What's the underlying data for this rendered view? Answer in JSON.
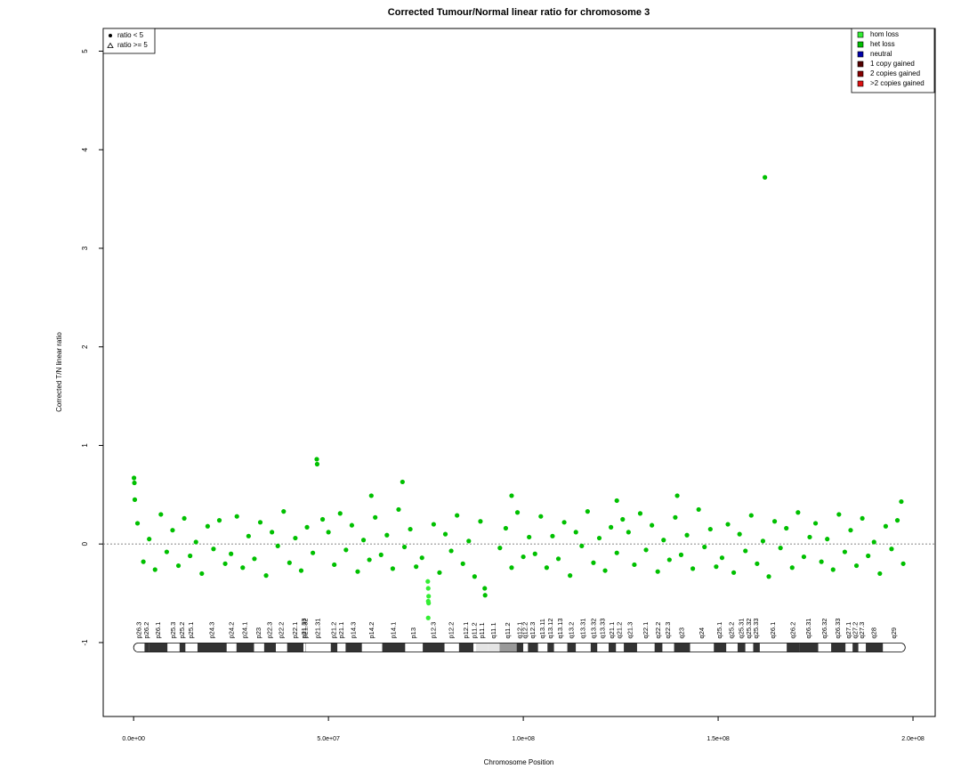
{
  "chart_data": {
    "type": "scatter",
    "title": "Corrected Tumour/Normal linear ratio for chromosome  3",
    "x_label": "Chromosome Position",
    "y_label": "Corrected T/N linear ratio",
    "xlim": [
      -7800000.0,
      205700000.0
    ],
    "ylim": [
      -1.75,
      5.23
    ],
    "xticks": [
      {
        "value": 0,
        "label": "0.0e+00"
      },
      {
        "value": 50000000.0,
        "label": "5.0e+07"
      },
      {
        "value": 100000000.0,
        "label": "1.0e+08"
      },
      {
        "value": 150000000.0,
        "label": "1.5e+08"
      },
      {
        "value": 200000000.0,
        "label": "2.0e+08"
      }
    ],
    "yticks": [
      -1,
      0,
      1,
      2,
      3,
      4,
      5
    ],
    "hline": 0,
    "legend": "top-right",
    "shape_legend": [
      {
        "label": "ratio < 5",
        "shape": "circle"
      },
      {
        "label": "ratio >= 5",
        "shape": "triangle"
      }
    ],
    "series": [
      {
        "name": "hom loss",
        "color": "#33ee33",
        "x": [
          75500000.0,
          75600000.0,
          75700000.0,
          75600000.0,
          75700000.0,
          75600000.0
        ],
        "values": [
          -0.38,
          -0.45,
          -0.53,
          -0.58,
          -0.6,
          -0.75
        ]
      },
      {
        "name": "het loss",
        "color": "#00c000",
        "x": [
          1000000.0,
          2500000.0,
          4000000.0,
          5500000.0,
          7000000.0,
          8500000.0,
          10000000.0,
          11500000.0,
          13000000.0,
          14500000.0,
          16000000.0,
          17500000.0,
          19000000.0,
          20500000.0,
          22000000.0,
          23500000.0,
          25000000.0,
          26500000.0,
          28000000.0,
          29500000.0,
          31000000.0,
          32500000.0,
          34000000.0,
          35500000.0,
          37000000.0,
          38500000.0,
          40000000.0,
          41500000.0,
          43000000.0,
          44500000.0,
          46000000.0,
          48500000.0,
          50000000.0,
          51500000.0,
          53000000.0,
          54500000.0,
          56000000.0,
          57500000.0,
          59000000.0,
          60500000.0,
          62000000.0,
          63500000.0,
          65000000.0,
          66500000.0,
          68000000.0,
          69500000.0,
          71000000.0,
          72500000.0,
          74000000.0,
          77000000.0,
          78500000.0,
          80000000.0,
          81500000.0,
          83000000.0,
          84500000.0,
          86000000.0,
          87500000.0,
          89000000.0,
          94000000.0,
          95500000.0,
          97000000.0,
          98500000.0,
          100000000.0,
          101500000.0,
          103000000.0,
          104500000.0,
          106000000.0,
          107500000.0,
          109000000.0,
          110500000.0,
          112000000.0,
          113500000.0,
          115000000.0,
          116500000.0,
          118000000.0,
          119500000.0,
          121000000.0,
          122500000.0,
          124000000.0,
          125500000.0,
          127000000.0,
          128500000.0,
          130000000.0,
          131500000.0,
          133000000.0,
          134500000.0,
          136000000.0,
          137500000.0,
          139000000.0,
          140500000.0,
          142000000.0,
          143500000.0,
          145000000.0,
          146500000.0,
          148000000.0,
          149500000.0,
          151000000.0,
          152500000.0,
          154000000.0,
          155500000.0,
          157000000.0,
          158500000.0,
          160000000.0,
          161500000.0,
          163000000.0,
          164500000.0,
          166000000.0,
          167500000.0,
          169000000.0,
          170500000.0,
          172000000.0,
          173500000.0,
          175000000.0,
          176500000.0,
          178000000.0,
          179500000.0,
          181000000.0,
          182500000.0,
          184000000.0,
          185500000.0,
          187000000.0,
          188500000.0,
          190000000.0,
          191500000.0,
          193000000.0,
          194500000.0,
          196000000.0,
          197500000.0,
          100000.0,
          200000.0,
          300000.0,
          47000000.0,
          47100000.0,
          69000000.0,
          162000000.0,
          61000000.0,
          97000000.0,
          139500000.0,
          124000000.0,
          197000000.0,
          90100000.0,
          90200000.0
        ],
        "values": [
          0.21,
          -0.18,
          0.05,
          -0.26,
          0.3,
          -0.08,
          0.14,
          -0.22,
          0.26,
          -0.12,
          0.02,
          -0.3,
          0.18,
          -0.05,
          0.24,
          -0.2,
          -0.1,
          0.28,
          -0.24,
          0.08,
          -0.15,
          0.22,
          -0.32,
          0.12,
          -0.02,
          0.33,
          -0.19,
          0.06,
          -0.27,
          0.17,
          -0.09,
          0.25,
          0.12,
          -0.21,
          0.31,
          -0.06,
          0.19,
          -0.28,
          0.04,
          -0.16,
          0.27,
          -0.11,
          0.09,
          -0.25,
          0.35,
          -0.03,
          0.15,
          -0.23,
          -0.14,
          0.2,
          -0.29,
          0.1,
          -0.07,
          0.29,
          -0.2,
          0.03,
          -0.33,
          0.23,
          -0.04,
          0.16,
          -0.24,
          0.32,
          -0.13,
          0.07,
          -0.1,
          0.28,
          -0.24,
          0.08,
          -0.15,
          0.22,
          -0.32,
          0.12,
          -0.02,
          0.33,
          -0.19,
          0.06,
          -0.27,
          0.17,
          -0.09,
          0.25,
          0.12,
          -0.21,
          0.31,
          -0.06,
          0.19,
          -0.28,
          0.04,
          -0.16,
          0.27,
          -0.11,
          0.09,
          -0.25,
          0.35,
          -0.03,
          0.15,
          -0.23,
          -0.14,
          0.2,
          -0.29,
          0.1,
          -0.07,
          0.29,
          -0.2,
          0.03,
          -0.33,
          0.23,
          -0.04,
          0.16,
          -0.24,
          0.32,
          -0.13,
          0.07,
          0.21,
          -0.18,
          0.05,
          -0.26,
          0.3,
          -0.08,
          0.14,
          -0.22,
          0.26,
          -0.12,
          0.02,
          -0.3,
          0.18,
          -0.05,
          0.24,
          -0.2,
          0.67,
          0.62,
          0.45,
          0.86,
          0.81,
          0.63,
          3.72,
          0.49,
          0.49,
          0.49,
          0.44,
          0.43,
          -0.45,
          -0.52
        ]
      },
      {
        "name": "neutral",
        "color": "#0000aa",
        "x": [],
        "values": []
      },
      {
        "name": "1 copy gained",
        "color": "#550000",
        "x": [],
        "values": []
      },
      {
        "name": "2 copies gained",
        "color": "#880000",
        "x": [],
        "values": []
      },
      {
        "name": ">2 copies gained",
        "color": "#dd1111",
        "x": [],
        "values": []
      }
    ],
    "ideogram": {
      "value": -1.05,
      "bands": [
        {
          "name": "p26.3",
          "start": 0,
          "end": 2800000.0,
          "color": "#ffffff"
        },
        {
          "name": "p26.2",
          "start": 2800000.0,
          "end": 4000000.0,
          "color": "#333333"
        },
        {
          "name": "p26.1",
          "start": 4000000.0,
          "end": 8700000.0,
          "color": "#333333"
        },
        {
          "name": "p25.3",
          "start": 8700000.0,
          "end": 11800000.0,
          "color": "#ffffff"
        },
        {
          "name": "p25.2",
          "start": 11800000.0,
          "end": 13300000.0,
          "color": "#333333"
        },
        {
          "name": "p25.1",
          "start": 13300000.0,
          "end": 16400000.0,
          "color": "#ffffff"
        },
        {
          "name": "p24.3",
          "start": 16400000.0,
          "end": 23900000.0,
          "color": "#333333"
        },
        {
          "name": "p24.2",
          "start": 23900000.0,
          "end": 26400000.0,
          "color": "#ffffff"
        },
        {
          "name": "p24.1",
          "start": 26400000.0,
          "end": 30900000.0,
          "color": "#333333"
        },
        {
          "name": "p23",
          "start": 30900000.0,
          "end": 33500000.0,
          "color": "#ffffff"
        },
        {
          "name": "p22.3",
          "start": 33500000.0,
          "end": 36500000.0,
          "color": "#333333"
        },
        {
          "name": "p22.2",
          "start": 36500000.0,
          "end": 39400000.0,
          "color": "#ffffff"
        },
        {
          "name": "p22.1",
          "start": 39400000.0,
          "end": 43600000.0,
          "color": "#333333"
        },
        {
          "name": "p21.33",
          "start": 43600000.0,
          "end": 44100000.0,
          "color": "#ffffff"
        },
        {
          "name": "p21.32",
          "start": 44100000.0,
          "end": 44200000.0,
          "color": "#333333"
        },
        {
          "name": "p21.31",
          "start": 44200000.0,
          "end": 50600000.0,
          "color": "#ffffff"
        },
        {
          "name": "p21.2",
          "start": 50600000.0,
          "end": 52300000.0,
          "color": "#333333"
        },
        {
          "name": "p21.1",
          "start": 52300000.0,
          "end": 54400000.0,
          "color": "#ffffff"
        },
        {
          "name": "p14.3",
          "start": 54400000.0,
          "end": 58600000.0,
          "color": "#333333"
        },
        {
          "name": "p14.2",
          "start": 58600000.0,
          "end": 63800000.0,
          "color": "#ffffff"
        },
        {
          "name": "p14.1",
          "start": 63800000.0,
          "end": 69700000.0,
          "color": "#333333"
        },
        {
          "name": "p13",
          "start": 69700000.0,
          "end": 74200000.0,
          "color": "#ffffff"
        },
        {
          "name": "p12.3",
          "start": 74200000.0,
          "end": 79800000.0,
          "color": "#333333"
        },
        {
          "name": "p12.2",
          "start": 79800000.0,
          "end": 83500000.0,
          "color": "#ffffff"
        },
        {
          "name": "p12.1",
          "start": 83500000.0,
          "end": 87200000.0,
          "color": "#333333"
        },
        {
          "name": "p11.2",
          "start": 87200000.0,
          "end": 87900000.0,
          "color": "#ffffff"
        },
        {
          "name": "p11.1",
          "start": 87900000.0,
          "end": 91000000.0,
          "color": "#e4e4e4"
        },
        {
          "name": "q11.1",
          "start": 91000000.0,
          "end": 93900000.0,
          "color": "#e4e4e4"
        },
        {
          "name": "q11.2",
          "start": 93900000.0,
          "end": 98300000.0,
          "color": "#999999"
        },
        {
          "name": "q12.1",
          "start": 98300000.0,
          "end": 100000000.0,
          "color": "#333333"
        },
        {
          "name": "q12.2",
          "start": 100000000.0,
          "end": 101200000.0,
          "color": "#ffffff"
        },
        {
          "name": "q12.3",
          "start": 101200000.0,
          "end": 103800000.0,
          "color": "#333333"
        },
        {
          "name": "q13.11",
          "start": 103800000.0,
          "end": 106200000.0,
          "color": "#ffffff"
        },
        {
          "name": "q13.12",
          "start": 106200000.0,
          "end": 107900000.0,
          "color": "#333333"
        },
        {
          "name": "q13.13",
          "start": 107900000.0,
          "end": 111300000.0,
          "color": "#ffffff"
        },
        {
          "name": "q13.2",
          "start": 111300000.0,
          "end": 113500000.0,
          "color": "#333333"
        },
        {
          "name": "q13.31",
          "start": 113500000.0,
          "end": 117300000.0,
          "color": "#ffffff"
        },
        {
          "name": "q13.32",
          "start": 117300000.0,
          "end": 119000000.0,
          "color": "#333333"
        },
        {
          "name": "q13.33",
          "start": 119000000.0,
          "end": 121900000.0,
          "color": "#ffffff"
        },
        {
          "name": "q21.1",
          "start": 121900000.0,
          "end": 123800000.0,
          "color": "#333333"
        },
        {
          "name": "q21.2",
          "start": 123800000.0,
          "end": 125800000.0,
          "color": "#ffffff"
        },
        {
          "name": "q21.3",
          "start": 125800000.0,
          "end": 129200000.0,
          "color": "#333333"
        },
        {
          "name": "q22.1",
          "start": 129200000.0,
          "end": 133700000.0,
          "color": "#ffffff"
        },
        {
          "name": "q22.2",
          "start": 133700000.0,
          "end": 135700000.0,
          "color": "#333333"
        },
        {
          "name": "q22.3",
          "start": 135700000.0,
          "end": 138700000.0,
          "color": "#ffffff"
        },
        {
          "name": "q23",
          "start": 138700000.0,
          "end": 142800000.0,
          "color": "#333333"
        },
        {
          "name": "q24",
          "start": 142800000.0,
          "end": 148900000.0,
          "color": "#ffffff"
        },
        {
          "name": "q25.1",
          "start": 148900000.0,
          "end": 152100000.0,
          "color": "#333333"
        },
        {
          "name": "q25.2",
          "start": 152100000.0,
          "end": 155000000.0,
          "color": "#ffffff"
        },
        {
          "name": "q25.31",
          "start": 155000000.0,
          "end": 157000000.0,
          "color": "#333333"
        },
        {
          "name": "q25.32",
          "start": 157000000.0,
          "end": 159000000.0,
          "color": "#ffffff"
        },
        {
          "name": "q25.33",
          "start": 159000000.0,
          "end": 160700000.0,
          "color": "#333333"
        },
        {
          "name": "q26.1",
          "start": 160700000.0,
          "end": 167600000.0,
          "color": "#ffffff"
        },
        {
          "name": "q26.2",
          "start": 167600000.0,
          "end": 170900000.0,
          "color": "#333333"
        },
        {
          "name": "q26.31",
          "start": 170900000.0,
          "end": 175700000.0,
          "color": "#333333"
        },
        {
          "name": "q26.32",
          "start": 175700000.0,
          "end": 179000000.0,
          "color": "#ffffff"
        },
        {
          "name": "q26.33",
          "start": 179000000.0,
          "end": 182700000.0,
          "color": "#333333"
        },
        {
          "name": "q27.1",
          "start": 182700000.0,
          "end": 184500000.0,
          "color": "#ffffff"
        },
        {
          "name": "q27.2",
          "start": 184500000.0,
          "end": 186000000.0,
          "color": "#333333"
        },
        {
          "name": "q27.3",
          "start": 186000000.0,
          "end": 187900000.0,
          "color": "#ffffff"
        },
        {
          "name": "q28",
          "start": 187900000.0,
          "end": 192300000.0,
          "color": "#333333"
        },
        {
          "name": "q29",
          "start": 192300000.0,
          "end": 198000000.0,
          "color": "#ffffff"
        }
      ]
    }
  }
}
